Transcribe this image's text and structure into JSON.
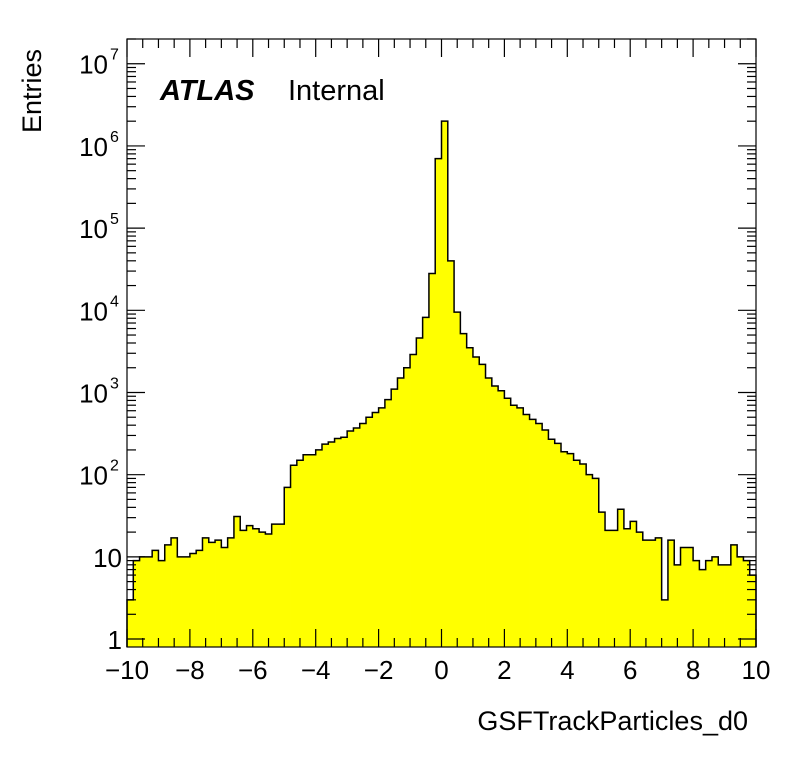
{
  "chart_data": {
    "type": "bar",
    "title": "",
    "xlabel": "GSFTrackParticles_d0",
    "ylabel": "Entries",
    "xlim": [
      -10,
      10
    ],
    "ylim": [
      0.8,
      20000000
    ],
    "yscale": "log",
    "grid": false,
    "legend": "none",
    "fill_color": "#ffff00",
    "line_color": "#000000",
    "annotation": {
      "experiment": "ATLAS",
      "status": "Internal"
    },
    "x_ticks": [
      -10,
      -8,
      -6,
      -4,
      -2,
      0,
      2,
      4,
      6,
      8,
      10
    ],
    "x_tick_labels": [
      "−10",
      "−8",
      "−6",
      "−4",
      "−2",
      "0",
      "2",
      "4",
      "6",
      "8",
      "10"
    ],
    "y_ticks": [
      {
        "value": 1,
        "label": "1",
        "exp": ""
      },
      {
        "value": 10,
        "label": "10",
        "exp": ""
      },
      {
        "value": 100,
        "label": "10",
        "exp": "2"
      },
      {
        "value": 1000,
        "label": "10",
        "exp": "3"
      },
      {
        "value": 10000,
        "label": "10",
        "exp": "4"
      },
      {
        "value": 100000,
        "label": "10",
        "exp": "5"
      },
      {
        "value": 1000000,
        "label": "10",
        "exp": "6"
      },
      {
        "value": 10000000,
        "label": "10",
        "exp": "7"
      }
    ],
    "bin_edges_start": -10,
    "bin_width": 0.2,
    "values": [
      3,
      9,
      10,
      10,
      12,
      9,
      14,
      17,
      10,
      10,
      11,
      12,
      17,
      15,
      16,
      13,
      17,
      31,
      21,
      24,
      22,
      20,
      19,
      25,
      25,
      70,
      130,
      150,
      175,
      175,
      200,
      235,
      250,
      275,
      285,
      340,
      370,
      420,
      500,
      570,
      650,
      820,
      1100,
      1500,
      2000,
      2900,
      4600,
      8200,
      28000,
      700000,
      2000000,
      40000,
      9500,
      5200,
      3500,
      2700,
      2200,
      1500,
      1200,
      1050,
      850,
      700,
      650,
      540,
      470,
      420,
      350,
      270,
      240,
      190,
      180,
      150,
      135,
      100,
      90,
      35,
      21,
      21,
      38,
      22,
      27,
      20,
      16,
      16,
      17,
      3,
      16,
      8,
      13,
      13,
      9,
      7,
      9,
      10,
      8,
      8,
      14,
      10,
      9,
      6
    ]
  }
}
